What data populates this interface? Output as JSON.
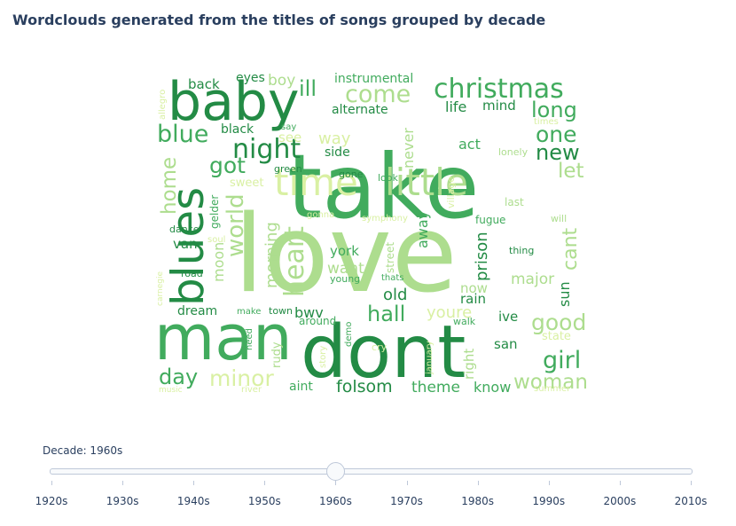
{
  "title": "Wordclouds generated from the titles of songs grouped by decade",
  "slider": {
    "label": "Decade: 1960s",
    "selected": "1960s",
    "steps": [
      "1920s",
      "1930s",
      "1940s",
      "1950s",
      "1960s",
      "1970s",
      "1980s",
      "1990s",
      "2000s",
      "2010s"
    ]
  },
  "wordcloud": {
    "colors": {
      "dark": "#238b45",
      "mid": "#41ab5d",
      "light": "#addd8e",
      "pale": "#d9f0a3"
    },
    "words": [
      {
        "t": "love",
        "c": "light"
      },
      {
        "t": "take",
        "c": "mid"
      },
      {
        "t": "dont",
        "c": "dark"
      },
      {
        "t": "man",
        "c": "mid"
      },
      {
        "t": "baby",
        "c": "dark"
      },
      {
        "t": "time",
        "c": "pale"
      },
      {
        "t": "little",
        "c": "light"
      },
      {
        "t": "blues",
        "c": "dark"
      },
      {
        "t": "christmas",
        "c": "mid"
      },
      {
        "t": "night",
        "c": "dark"
      },
      {
        "t": "come",
        "c": "light"
      },
      {
        "t": "blue",
        "c": "mid"
      },
      {
        "t": "got",
        "c": "mid"
      },
      {
        "t": "one",
        "c": "mid"
      },
      {
        "t": "new",
        "c": "dark"
      },
      {
        "t": "long",
        "c": "mid"
      },
      {
        "t": "let",
        "c": "light"
      },
      {
        "t": "heart",
        "c": "light"
      },
      {
        "t": "world",
        "c": "light"
      },
      {
        "t": "home",
        "c": "light"
      },
      {
        "t": "cant",
        "c": "light"
      },
      {
        "t": "hall",
        "c": "mid"
      },
      {
        "t": "good",
        "c": "light"
      },
      {
        "t": "girl",
        "c": "mid"
      },
      {
        "t": "woman",
        "c": "light"
      },
      {
        "t": "minor",
        "c": "pale"
      },
      {
        "t": "day",
        "c": "mid"
      },
      {
        "t": "folsom",
        "c": "dark"
      },
      {
        "t": "theme",
        "c": "mid"
      },
      {
        "t": "know",
        "c": "mid"
      },
      {
        "t": "ill",
        "c": "mid"
      },
      {
        "t": "back",
        "c": "dark"
      },
      {
        "t": "boy",
        "c": "light"
      },
      {
        "t": "eyes",
        "c": "dark"
      },
      {
        "t": "instrumental",
        "c": "mid"
      },
      {
        "t": "alternate",
        "c": "dark"
      },
      {
        "t": "life",
        "c": "dark"
      },
      {
        "t": "mind",
        "c": "dark"
      },
      {
        "t": "way",
        "c": "pale"
      },
      {
        "t": "black",
        "c": "dark"
      },
      {
        "t": "side",
        "c": "dark"
      },
      {
        "t": "see",
        "c": "pale"
      },
      {
        "t": "green",
        "c": "dark"
      },
      {
        "t": "sweet",
        "c": "pale"
      },
      {
        "t": "never",
        "c": "light"
      },
      {
        "t": "act",
        "c": "mid"
      },
      {
        "t": "morning",
        "c": "light"
      },
      {
        "t": "moon",
        "c": "light"
      },
      {
        "t": "york",
        "c": "mid"
      },
      {
        "t": "want",
        "c": "light"
      },
      {
        "t": "old",
        "c": "dark"
      },
      {
        "t": "away",
        "c": "mid"
      },
      {
        "t": "prison",
        "c": "dark"
      },
      {
        "t": "major",
        "c": "light"
      },
      {
        "t": "now",
        "c": "light"
      },
      {
        "t": "rain",
        "c": "dark"
      },
      {
        "t": "youre",
        "c": "pale"
      },
      {
        "t": "bwv",
        "c": "dark"
      },
      {
        "t": "dream",
        "c": "dark"
      },
      {
        "t": "van",
        "c": "dark"
      },
      {
        "t": "road",
        "c": "dark"
      },
      {
        "t": "dance",
        "c": "dark"
      },
      {
        "t": "sun",
        "c": "dark"
      },
      {
        "t": "ive",
        "c": "dark"
      },
      {
        "t": "san",
        "c": "dark"
      },
      {
        "t": "state",
        "c": "pale"
      },
      {
        "t": "aint",
        "c": "mid"
      },
      {
        "t": "rudy",
        "c": "light"
      },
      {
        "t": "right",
        "c": "light"
      },
      {
        "t": "gelder",
        "c": "mid"
      },
      {
        "t": "street",
        "c": "light"
      },
      {
        "t": "village",
        "c": "pale"
      },
      {
        "t": "thing",
        "c": "dark"
      },
      {
        "t": "last",
        "c": "light"
      },
      {
        "t": "will",
        "c": "light"
      },
      {
        "t": "fugue",
        "c": "mid"
      },
      {
        "t": "young",
        "c": "mid"
      },
      {
        "t": "thats",
        "c": "mid"
      },
      {
        "t": "lonely",
        "c": "light"
      },
      {
        "t": "gone",
        "c": "dark"
      },
      {
        "t": "look",
        "c": "mid"
      },
      {
        "t": "town",
        "c": "dark"
      },
      {
        "t": "around",
        "c": "mid"
      },
      {
        "t": "walk",
        "c": "mid"
      },
      {
        "t": "demo",
        "c": "mid"
      },
      {
        "t": "cry",
        "c": "pale"
      },
      {
        "t": "january",
        "c": "pale"
      },
      {
        "t": "story",
        "c": "pale"
      },
      {
        "t": "need",
        "c": "mid"
      },
      {
        "t": "make",
        "c": "mid"
      },
      {
        "t": "soul",
        "c": "pale"
      },
      {
        "t": "symphony",
        "c": "pale"
      },
      {
        "t": "gonna",
        "c": "pale"
      },
      {
        "t": "allegro",
        "c": "pale"
      },
      {
        "t": "say",
        "c": "mid"
      },
      {
        "t": "times",
        "c": "pale"
      },
      {
        "t": "carnegie",
        "c": "pale"
      },
      {
        "t": "music",
        "c": "pale"
      },
      {
        "t": "river",
        "c": "pale"
      },
      {
        "t": "summer",
        "c": "pale"
      }
    ]
  }
}
